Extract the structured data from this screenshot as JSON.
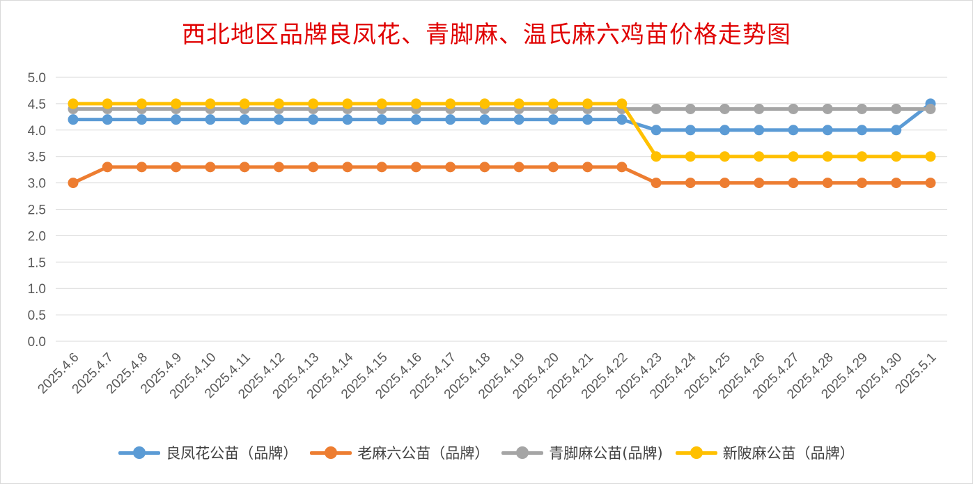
{
  "chart_data": {
    "type": "line",
    "title": "西北地区品牌良凤花、青脚麻、温氏麻六鸡苗价格走势图",
    "xlabel": "",
    "ylabel": "",
    "ylim": [
      0,
      5
    ],
    "yticks": [
      "0.0",
      "0.5",
      "1.0",
      "1.5",
      "2.0",
      "2.5",
      "3.0",
      "3.5",
      "4.0",
      "4.5",
      "5.0"
    ],
    "grid": true,
    "legend_position": "bottom",
    "categories": [
      "2025.4.6",
      "2025.4.7",
      "2025.4.8",
      "2025.4.9",
      "2025.4.10",
      "2025.4.11",
      "2025.4.12",
      "2025.4.13",
      "2025.4.14",
      "2025.4.15",
      "2025.4.16",
      "2025.4.17",
      "2025.4.18",
      "2025.4.19",
      "2025.4.20",
      "2025.4.21",
      "2025.4.22",
      "2025.4.23",
      "2025.4.24",
      "2025.4.25",
      "2025.4.26",
      "2025.4.27",
      "2025.4.28",
      "2025.4.29",
      "2025.4.30",
      "2025.5.1"
    ],
    "series": [
      {
        "name": "良凤花公苗（品牌）",
        "color": "#5b9bd5",
        "values": [
          4.2,
          4.2,
          4.2,
          4.2,
          4.2,
          4.2,
          4.2,
          4.2,
          4.2,
          4.2,
          4.2,
          4.2,
          4.2,
          4.2,
          4.2,
          4.2,
          4.2,
          4.0,
          4.0,
          4.0,
          4.0,
          4.0,
          4.0,
          4.0,
          4.0,
          4.5
        ]
      },
      {
        "name": "老麻六公苗（品牌）",
        "color": "#ed7d31",
        "values": [
          3.0,
          3.3,
          3.3,
          3.3,
          3.3,
          3.3,
          3.3,
          3.3,
          3.3,
          3.3,
          3.3,
          3.3,
          3.3,
          3.3,
          3.3,
          3.3,
          3.3,
          3.0,
          3.0,
          3.0,
          3.0,
          3.0,
          3.0,
          3.0,
          3.0,
          3.0
        ]
      },
      {
        "name": "青脚麻公苗(品牌)",
        "color": "#a5a5a5",
        "values": [
          4.4,
          4.4,
          4.4,
          4.4,
          4.4,
          4.4,
          4.4,
          4.4,
          4.4,
          4.4,
          4.4,
          4.4,
          4.4,
          4.4,
          4.4,
          4.4,
          4.4,
          4.4,
          4.4,
          4.4,
          4.4,
          4.4,
          4.4,
          4.4,
          4.4,
          4.4
        ]
      },
      {
        "name": "新陂麻公苗（品牌）",
        "color": "#ffc000",
        "values": [
          4.5,
          4.5,
          4.5,
          4.5,
          4.5,
          4.5,
          4.5,
          4.5,
          4.5,
          4.5,
          4.5,
          4.5,
          4.5,
          4.5,
          4.5,
          4.5,
          4.5,
          3.5,
          3.5,
          3.5,
          3.5,
          3.5,
          3.5,
          3.5,
          3.5,
          3.5
        ]
      }
    ]
  }
}
